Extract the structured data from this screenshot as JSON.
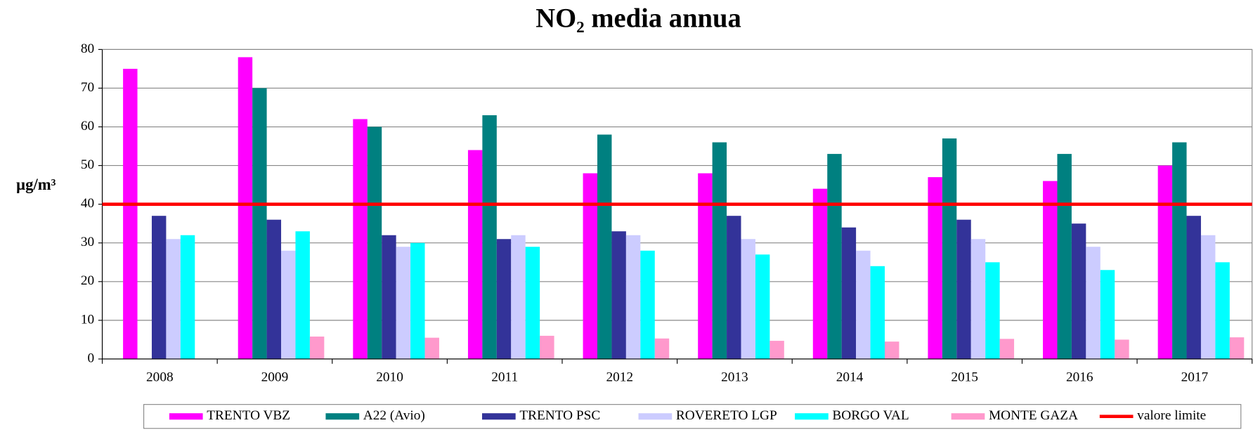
{
  "chart_data": {
    "type": "bar",
    "title": "NO₂ media annua",
    "y_label": "µg/m³",
    "categories": [
      "2008",
      "2009",
      "2010",
      "2011",
      "2012",
      "2013",
      "2014",
      "2015",
      "2016",
      "2017"
    ],
    "series": [
      {
        "name": "TRENTO VBZ",
        "color": "#ff00ff",
        "values": [
          75,
          78,
          62,
          54,
          48,
          48,
          44,
          47,
          46,
          50
        ]
      },
      {
        "name": "A22 (Avio)",
        "color": "#008080",
        "values": [
          null,
          70,
          60,
          63,
          58,
          56,
          53,
          57,
          53,
          56
        ]
      },
      {
        "name": "TRENTO PSC",
        "color": "#333399",
        "values": [
          37,
          36,
          32,
          31,
          33,
          37,
          34,
          36,
          35,
          37
        ]
      },
      {
        "name": "ROVERETO LGP",
        "color": "#ccccff",
        "values": [
          31,
          28,
          29,
          32,
          32,
          31,
          28,
          31,
          29,
          32
        ]
      },
      {
        "name": "BORGO VAL",
        "color": "#00ffff",
        "values": [
          32,
          33,
          30,
          29,
          28,
          27,
          24,
          25,
          23,
          25
        ]
      },
      {
        "name": "MONTE GAZA",
        "color": "#ff99cc",
        "values": [
          null,
          5.8,
          5.5,
          6,
          5.3,
          4.7,
          4.5,
          5.2,
          5,
          5.6
        ]
      }
    ],
    "threshold": {
      "name": "valore limite",
      "value": 40,
      "color": "#ff0000"
    },
    "ylim": [
      0,
      80
    ],
    "yticks": [
      0,
      10,
      20,
      30,
      40,
      50,
      60,
      70,
      80
    ],
    "grid": true
  }
}
